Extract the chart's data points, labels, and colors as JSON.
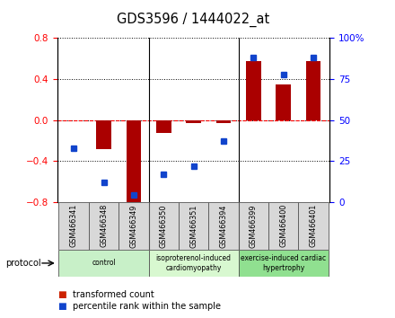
{
  "title": "GDS3596 / 1444022_at",
  "samples": [
    "GSM466341",
    "GSM466348",
    "GSM466349",
    "GSM466350",
    "GSM466351",
    "GSM466394",
    "GSM466399",
    "GSM466400",
    "GSM466401"
  ],
  "transformed_count": [
    0.0,
    -0.28,
    -0.82,
    -0.13,
    -0.03,
    -0.03,
    0.58,
    0.35,
    0.58
  ],
  "percentile_rank": [
    33,
    12,
    4,
    17,
    22,
    37,
    88,
    78,
    88
  ],
  "groups": [
    {
      "label": "control",
      "start": 0,
      "end": 3,
      "color": "#c8f0c8"
    },
    {
      "label": "isoproterenol-induced\ncardiomyopathy",
      "start": 3,
      "end": 6,
      "color": "#d8f8d0"
    },
    {
      "label": "exercise-induced cardiac\nhypertrophy",
      "start": 6,
      "end": 9,
      "color": "#90e090"
    }
  ],
  "bar_color": "#aa0000",
  "dot_color": "#1144cc",
  "left_ylim": [
    -0.8,
    0.8
  ],
  "right_ylim": [
    0,
    100
  ],
  "left_yticks": [
    -0.8,
    -0.4,
    0.0,
    0.4,
    0.8
  ],
  "right_yticks": [
    0,
    25,
    50,
    75,
    100
  ],
  "right_yticklabels": [
    "0",
    "25",
    "50",
    "75",
    "100%"
  ],
  "protocol_label": "protocol",
  "legend_items": [
    {
      "label": "transformed count",
      "color": "#cc2200"
    },
    {
      "label": "percentile rank within the sample",
      "color": "#1144cc"
    }
  ]
}
